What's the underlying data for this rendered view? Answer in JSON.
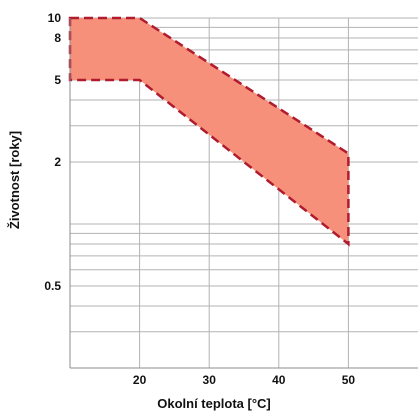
{
  "chart_data": {
    "type": "area",
    "title": "",
    "xlabel": "Okolní teplota [°C]",
    "ylabel": "Životnost [roky]",
    "x_ticks": [
      {
        "value": 20,
        "label": "20"
      },
      {
        "value": 30,
        "label": "30"
      },
      {
        "value": 40,
        "label": "40"
      },
      {
        "value": 50,
        "label": "50"
      }
    ],
    "y_ticks": [
      {
        "value": 10,
        "label": "10"
      },
      {
        "value": 8,
        "label": "8"
      },
      {
        "value": 5,
        "label": "5"
      },
      {
        "value": 2,
        "label": "2"
      },
      {
        "value": 0.5,
        "label": "0.5"
      }
    ],
    "xlim": [
      10,
      60
    ],
    "ylim": [
      0.2,
      10
    ],
    "y_scale": "log",
    "grid": true,
    "x_gridlines": [
      20,
      30,
      40,
      50
    ],
    "y_gridlines": [
      0.2,
      0.3,
      0.4,
      0.5,
      0.6,
      0.7,
      0.8,
      0.9,
      1,
      2,
      3,
      4,
      5,
      6,
      7,
      8,
      9,
      10
    ],
    "band": {
      "upper": [
        {
          "x": 10,
          "y": 10
        },
        {
          "x": 20,
          "y": 10
        },
        {
          "x": 50,
          "y": 2.2
        }
      ],
      "lower": [
        {
          "x": 10,
          "y": 5
        },
        {
          "x": 20,
          "y": 5
        },
        {
          "x": 50,
          "y": 0.8
        }
      ],
      "fill_color": "#f7907a",
      "edge_color": "#b01c2e"
    }
  }
}
